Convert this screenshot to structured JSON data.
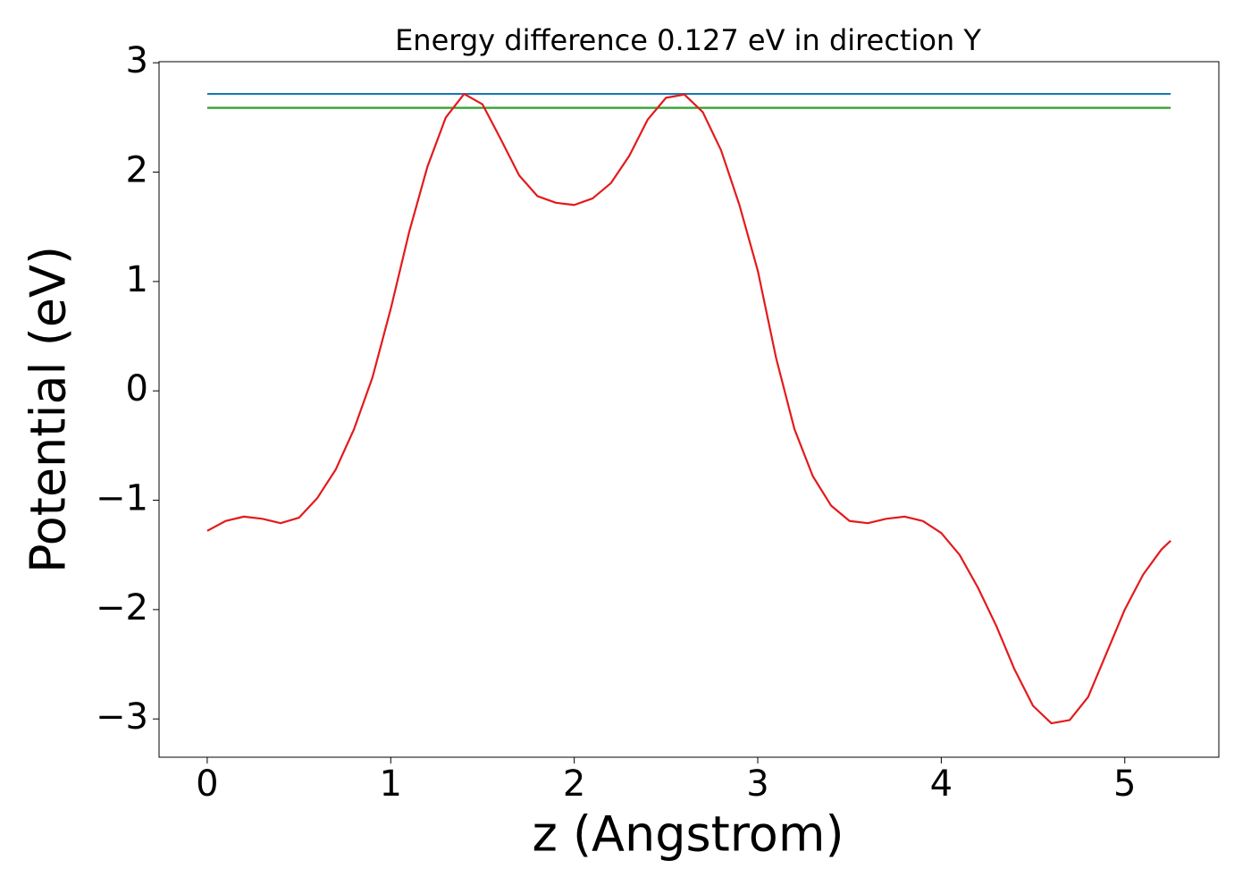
{
  "chart_data": {
    "type": "line",
    "title": "Energy difference 0.127 eV in direction Y",
    "xlabel": "z (Angstrom)",
    "ylabel": "Potential (eV)",
    "xlim": [
      -0.2625,
      5.5125
    ],
    "ylim": [
      -3.35,
      3.01
    ],
    "xticks": [
      0,
      1,
      2,
      3,
      4,
      5
    ],
    "yticks": [
      {
        "value": -3,
        "label": "−3"
      },
      {
        "value": -2,
        "label": "−2"
      },
      {
        "value": -1,
        "label": "−1"
      },
      0,
      1,
      2,
      3
    ],
    "series": [
      {
        "color": "#1f77b4",
        "x": [
          0,
          5.25
        ],
        "values": [
          2.715,
          2.715
        ]
      },
      {
        "color": "#2ca02c",
        "x": [
          0,
          5.25
        ],
        "values": [
          2.588,
          2.588
        ]
      },
      {
        "color": "#e31a1c",
        "x": [
          0,
          0.1,
          0.2,
          0.3,
          0.4,
          0.5,
          0.6,
          0.7,
          0.8,
          0.9,
          1.0,
          1.1,
          1.2,
          1.3,
          1.4,
          1.5,
          1.6,
          1.7,
          1.8,
          1.9,
          2.0,
          2.1,
          2.2,
          2.3,
          2.4,
          2.5,
          2.6,
          2.7,
          2.8,
          2.9,
          3.0,
          3.1,
          3.2,
          3.3,
          3.4,
          3.5,
          3.6,
          3.7,
          3.8,
          3.9,
          4.0,
          4.1,
          4.2,
          4.3,
          4.4,
          4.5,
          4.6,
          4.7,
          4.8,
          4.9,
          5.0,
          5.1,
          5.2,
          5.25
        ],
        "values": [
          -1.28,
          -1.19,
          -1.15,
          -1.17,
          -1.21,
          -1.16,
          -0.98,
          -0.72,
          -0.35,
          0.12,
          0.75,
          1.45,
          2.05,
          2.5,
          2.715,
          2.62,
          2.3,
          1.97,
          1.78,
          1.72,
          1.7,
          1.76,
          1.9,
          2.15,
          2.48,
          2.68,
          2.71,
          2.55,
          2.2,
          1.7,
          1.1,
          0.3,
          -0.35,
          -0.78,
          -1.05,
          -1.19,
          -1.21,
          -1.17,
          -1.15,
          -1.19,
          -1.3,
          -1.5,
          -1.8,
          -2.15,
          -2.55,
          -2.88,
          -3.04,
          -3.01,
          -2.8,
          -2.4,
          -2.0,
          -1.68,
          -1.45,
          -1.37
        ]
      }
    ]
  }
}
